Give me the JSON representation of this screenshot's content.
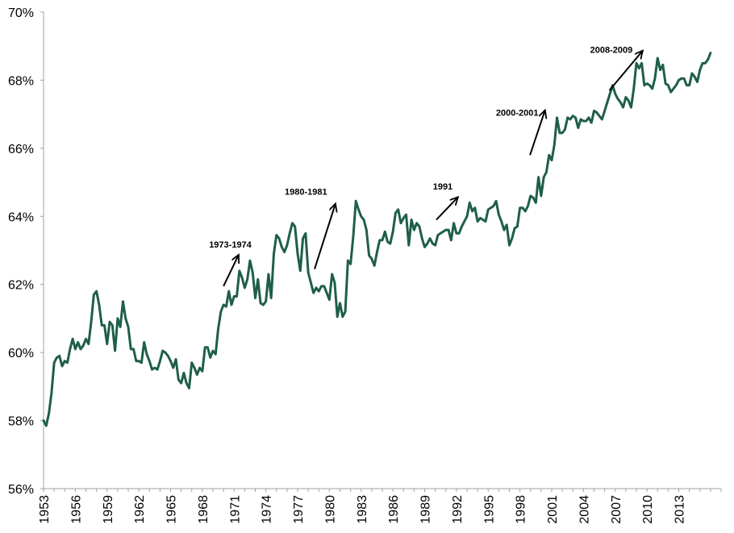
{
  "chart_data": {
    "type": "line",
    "title": "",
    "xlabel": "",
    "ylabel": "",
    "ylim": [
      56,
      70
    ],
    "xlim": [
      1953,
      2017
    ],
    "grid": false,
    "legend": "none",
    "line_color": "#1f5e4b",
    "y_ticks": [
      "56%",
      "58%",
      "60%",
      "62%",
      "64%",
      "66%",
      "68%",
      "70%"
    ],
    "x_ticks": [
      "1953",
      "1956",
      "1959",
      "1962",
      "1965",
      "1968",
      "1971",
      "1974",
      "1977",
      "1980",
      "1983",
      "1986",
      "1989",
      "1992",
      "1995",
      "1998",
      "2001",
      "2004",
      "2007",
      "2010",
      "2013"
    ],
    "series": [
      {
        "x": [
          1953.0,
          1953.25,
          1953.5,
          1953.75,
          1954.0,
          1954.25,
          1954.5,
          1954.75,
          1955.0,
          1955.25,
          1955.5,
          1955.75,
          1956.0,
          1956.25,
          1956.5,
          1956.75,
          1957.0,
          1957.25,
          1957.5,
          1957.75,
          1958.0,
          1958.25,
          1958.5,
          1958.75,
          1959.0,
          1959.25,
          1959.5,
          1959.75,
          1960.0,
          1960.25,
          1960.5,
          1960.75,
          1961.0,
          1961.25,
          1961.5,
          1961.75,
          1962.0,
          1962.25,
          1962.5,
          1962.75,
          1963.0,
          1963.25,
          1963.5,
          1963.75,
          1964.0,
          1964.25,
          1964.5,
          1964.75,
          1965.0,
          1965.25,
          1965.5,
          1965.75,
          1966.0,
          1966.25,
          1966.5,
          1966.75,
          1967.0,
          1967.25,
          1967.5,
          1967.75,
          1968.0,
          1968.25,
          1968.5,
          1968.75,
          1969.0,
          1969.25,
          1969.5,
          1969.75,
          1970.0,
          1970.25,
          1970.5,
          1970.75,
          1971.0,
          1971.25,
          1971.5,
          1971.75,
          1972.0,
          1972.25,
          1972.5,
          1972.75,
          1973.0,
          1973.25,
          1973.5,
          1973.75,
          1974.0,
          1974.25,
          1974.5,
          1974.75,
          1975.0,
          1975.25,
          1975.5,
          1975.75,
          1976.0,
          1976.25,
          1976.5,
          1976.75,
          1977.0,
          1977.25,
          1977.5,
          1977.75,
          1978.0,
          1978.25,
          1978.5,
          1978.75,
          1979.0,
          1979.25,
          1979.5,
          1979.75,
          1980.0,
          1980.25,
          1980.5,
          1980.75,
          1981.0,
          1981.25,
          1981.5,
          1981.75,
          1982.0,
          1982.25,
          1982.5,
          1982.75,
          1983.0,
          1983.25,
          1983.5,
          1983.75,
          1984.0,
          1984.25,
          1984.5,
          1984.75,
          1985.0,
          1985.25,
          1985.5,
          1985.75,
          1986.0,
          1986.25,
          1986.5,
          1986.75,
          1987.0,
          1987.25,
          1987.5,
          1987.75,
          1988.0,
          1988.25,
          1988.5,
          1988.75,
          1989.0,
          1989.25,
          1989.5,
          1989.75,
          1990.0,
          1990.25,
          1990.5,
          1990.75,
          1991.0,
          1991.25,
          1991.5,
          1991.75,
          1992.0,
          1992.25,
          1992.5,
          1992.75,
          1993.0,
          1993.25,
          1993.5,
          1993.75,
          1994.0,
          1994.25,
          1994.5,
          1994.75,
          1995.0,
          1995.25,
          1995.5,
          1995.75,
          1996.0,
          1996.25,
          1996.5,
          1996.75,
          1997.0,
          1997.25,
          1997.5,
          1997.75,
          1998.0,
          1998.25,
          1998.5,
          1998.75,
          1999.0,
          1999.25,
          1999.5,
          1999.75,
          2000.0,
          2000.25,
          2000.5,
          2000.75,
          2001.0,
          2001.25,
          2001.5,
          2001.75,
          2002.0,
          2002.25,
          2002.5,
          2002.75,
          2003.0,
          2003.25,
          2003.5,
          2003.75,
          2004.0,
          2004.25,
          2004.5,
          2004.75,
          2005.0,
          2005.25,
          2005.5,
          2005.75,
          2006.0,
          2006.25,
          2006.5,
          2006.75,
          2007.0,
          2007.25,
          2007.5,
          2007.75,
          2008.0,
          2008.25,
          2008.5,
          2008.75,
          2009.0,
          2009.25,
          2009.5,
          2009.75,
          2010.0,
          2010.25,
          2010.5,
          2010.75,
          2011.0,
          2011.25,
          2011.5,
          2011.75,
          2012.0,
          2012.25,
          2012.5,
          2012.75,
          2013.0,
          2013.25,
          2013.5,
          2013.75,
          2014.0,
          2014.25,
          2014.5,
          2014.75,
          2015.0,
          2015.25,
          2015.5,
          2015.75,
          2016.0
        ],
        "values": [
          58.0,
          57.85,
          58.2,
          58.8,
          59.7,
          59.85,
          59.9,
          59.6,
          59.75,
          59.7,
          60.1,
          60.4,
          60.1,
          60.3,
          60.1,
          60.2,
          60.4,
          60.25,
          60.9,
          61.7,
          61.8,
          61.4,
          60.8,
          60.8,
          60.25,
          60.9,
          60.8,
          60.05,
          61.0,
          60.75,
          61.5,
          61.0,
          60.75,
          60.1,
          60.1,
          59.75,
          59.75,
          59.7,
          60.3,
          59.95,
          59.75,
          59.5,
          59.55,
          59.5,
          59.75,
          60.05,
          60.0,
          59.9,
          59.75,
          59.55,
          59.8,
          59.2,
          59.1,
          59.4,
          59.1,
          58.95,
          59.7,
          59.55,
          59.35,
          59.55,
          59.45,
          60.15,
          60.15,
          59.85,
          60.05,
          59.95,
          60.7,
          61.2,
          61.4,
          61.35,
          61.8,
          61.4,
          61.65,
          61.65,
          62.4,
          62.2,
          61.9,
          62.15,
          62.7,
          62.35,
          61.6,
          62.15,
          61.45,
          61.4,
          61.5,
          62.3,
          61.6,
          62.9,
          63.45,
          63.35,
          63.1,
          62.95,
          63.15,
          63.5,
          63.8,
          63.7,
          62.9,
          62.4,
          63.35,
          63.5,
          62.35,
          62.05,
          61.75,
          61.9,
          61.8,
          61.95,
          61.95,
          61.75,
          61.55,
          62.3,
          62.05,
          61.05,
          61.45,
          61.05,
          61.2,
          62.7,
          62.6,
          63.4,
          64.45,
          64.2,
          64.0,
          63.9,
          63.6,
          62.85,
          62.75,
          62.55,
          62.95,
          63.3,
          63.3,
          63.55,
          63.25,
          63.2,
          63.55,
          64.1,
          64.2,
          63.8,
          63.95,
          64.05,
          63.15,
          63.9,
          63.6,
          63.8,
          63.7,
          63.35,
          63.1,
          63.2,
          63.35,
          63.2,
          63.15,
          63.45,
          63.5,
          63.55,
          63.6,
          63.6,
          63.3,
          63.8,
          63.5,
          63.5,
          63.7,
          63.85,
          64.0,
          64.4,
          64.15,
          64.25,
          63.85,
          63.95,
          63.9,
          63.85,
          64.2,
          64.25,
          64.3,
          64.45,
          64.05,
          63.85,
          63.6,
          63.75,
          63.15,
          63.35,
          63.65,
          63.7,
          64.25,
          64.25,
          64.15,
          64.3,
          64.6,
          64.55,
          64.4,
          65.15,
          64.6,
          65.15,
          65.3,
          65.8,
          65.65,
          66.1,
          66.9,
          66.45,
          66.45,
          66.55,
          66.9,
          66.85,
          66.95,
          66.9,
          66.6,
          66.85,
          66.8,
          66.8,
          66.9,
          66.75,
          67.1,
          67.05,
          66.95,
          66.85,
          67.1,
          67.35,
          67.6,
          67.85,
          67.6,
          67.45,
          67.35,
          67.2,
          67.5,
          67.4,
          67.2,
          67.75,
          68.5,
          68.35,
          68.5,
          67.85,
          67.9,
          67.85,
          67.75,
          68.05,
          68.65,
          68.3,
          68.45,
          67.9,
          67.85,
          67.65,
          67.75,
          67.85,
          68.0,
          68.05,
          68.05,
          67.85,
          67.85,
          68.2,
          68.1,
          67.95,
          68.3,
          68.5,
          68.5,
          68.6,
          68.8
        ]
      }
    ],
    "annotations": [
      {
        "label": "1973-1974",
        "from": [
          1970.0,
          61.95
        ],
        "to": [
          1971.4,
          62.85
        ]
      },
      {
        "label": "1980-1981",
        "from": [
          1978.6,
          62.45
        ],
        "to": [
          1980.55,
          64.35
        ]
      },
      {
        "label": "1991",
        "from": [
          1990.1,
          63.9
        ],
        "to": [
          1992.1,
          64.55
        ]
      },
      {
        "label": "2000-2001",
        "from": [
          1998.95,
          65.8
        ],
        "to": [
          2000.35,
          67.1
        ]
      },
      {
        "label": "2008-2009",
        "from": [
          2006.45,
          67.7
        ],
        "to": [
          2009.55,
          68.85
        ]
      }
    ]
  }
}
